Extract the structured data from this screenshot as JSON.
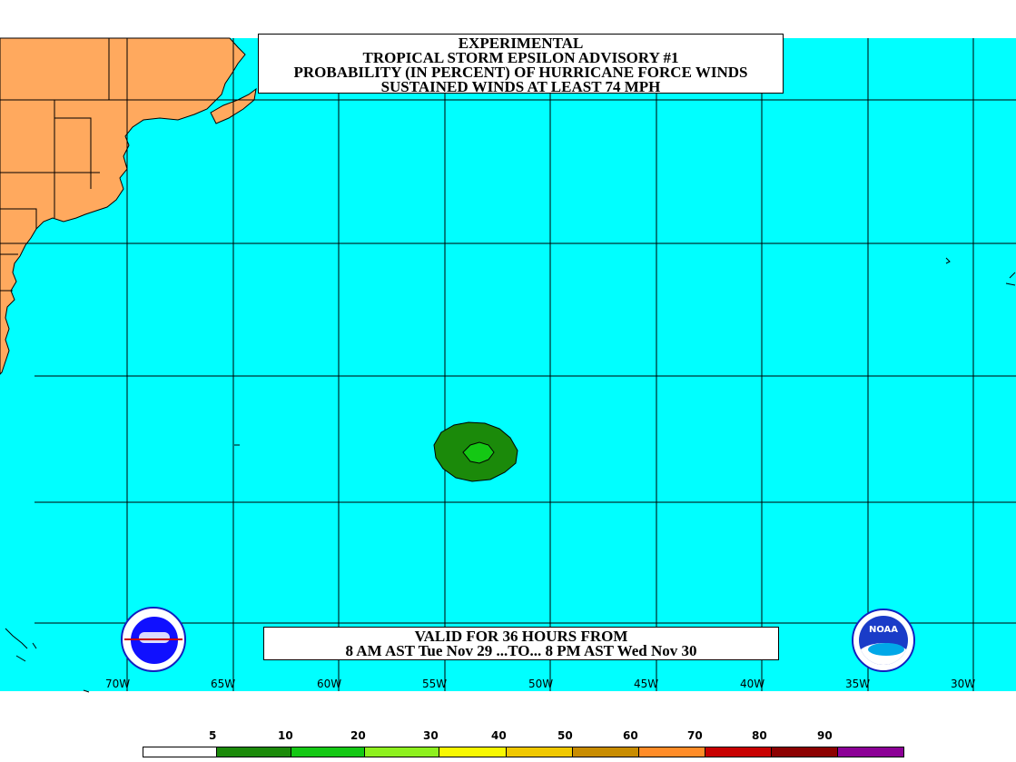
{
  "title": {
    "line1": "EXPERIMENTAL",
    "line2": "TROPICAL STORM EPSILON ADVISORY #1",
    "line3": "PROBABILITY (IN PERCENT) OF HURRICANE FORCE WINDS",
    "line4": "SUSTAINED WINDS AT LEAST 74 MPH"
  },
  "valid": {
    "line1": "VALID FOR 36 HOURS FROM",
    "line2": "8 AM AST Tue Nov 29 ...TO... 8 PM AST Wed Nov 30"
  },
  "longitude_labels": [
    "70W",
    "65W",
    "60W",
    "55W",
    "50W",
    "45W",
    "40W",
    "35W",
    "30W"
  ],
  "legend": {
    "thresholds": [
      "5",
      "10",
      "20",
      "30",
      "40",
      "50",
      "60",
      "70",
      "80",
      "90"
    ],
    "colors": [
      "#ffffff",
      "#1b8a0a",
      "#14c814",
      "#8ef01e",
      "#f8f800",
      "#f0c800",
      "#c88c00",
      "#ff8c28",
      "#c80000",
      "#8c0000",
      "#8c0096"
    ]
  },
  "colors": {
    "ocean": "#00ffff",
    "land": "#ffa95e",
    "grid": "#000000",
    "prob_5_10": "#1b8a0a",
    "prob_10_20": "#14c814"
  },
  "logos": {
    "left": "national-weather-service-icon",
    "right": "noaa-icon",
    "right_text": "NOAA"
  }
}
